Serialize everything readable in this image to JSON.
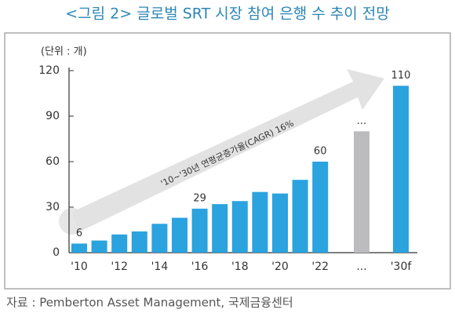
{
  "chart_data": {
    "type": "bar",
    "title": "<그림 2> 글로벌 SRT 시장 참여 은행 수 추이 전망",
    "unit_label": "(단위 : 개)",
    "categories": [
      "'10",
      null,
      "'12",
      null,
      "'14",
      null,
      "'16",
      null,
      "'18",
      null,
      "'20",
      null,
      "'22",
      "...",
      "'30f"
    ],
    "values": [
      6,
      8,
      12,
      14,
      19,
      23,
      29,
      32,
      34,
      40,
      39,
      48,
      60,
      80,
      110
    ],
    "value_labels": [
      "6",
      null,
      null,
      null,
      null,
      null,
      "29",
      null,
      null,
      null,
      null,
      null,
      "60",
      "...",
      "110"
    ],
    "colors": [
      "#2aa3df",
      "#2aa3df",
      "#2aa3df",
      "#2aa3df",
      "#2aa3df",
      "#2aa3df",
      "#2aa3df",
      "#2aa3df",
      "#2aa3df",
      "#2aa3df",
      "#2aa3df",
      "#2aa3df",
      "#2aa3df",
      "#bcbcbe",
      "#2aa3df"
    ],
    "ylim": [
      0,
      120
    ],
    "yticks": [
      0,
      30,
      60,
      90,
      120
    ],
    "grid": false,
    "annotation": "'10~'30년 연평균증가율(CAGR) 16%",
    "source": "자료 : Pemberton Asset Management, 국제금융센터"
  }
}
